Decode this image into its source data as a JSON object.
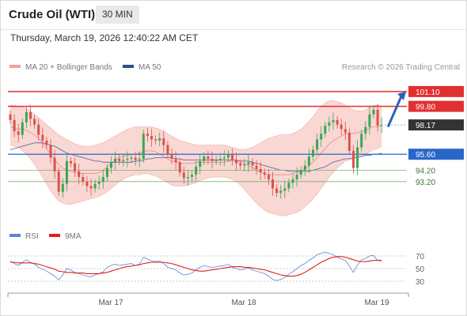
{
  "header": {
    "title": "Crude Oil (WTI)",
    "interval": "30 MIN"
  },
  "timestamp": "Thursday, March 19, 2026 12:40:22 AM CET",
  "legend": {
    "ma20": {
      "label": "MA 20 + Bollinger Bands",
      "color": "#f08080"
    },
    "ma50": {
      "label": "MA 50",
      "color": "#2c4f8c"
    }
  },
  "copyright": "Research © 2026 Trading Central",
  "colors": {
    "up": "#3aa655",
    "down": "#d9534f",
    "resistance": "#e03030",
    "pivot": "#2a66c8",
    "support": "#76b36b",
    "arrow": "#2a62b5",
    "band_fill": "#f7c9c4",
    "current": "#333333"
  },
  "chart_data": [
    {
      "type": "line",
      "subtype": "candlestick",
      "title": "Crude Oil (WTI)",
      "interval": "30 MIN",
      "ylim": [
        90.0,
        102.2
      ],
      "grid": false,
      "x_ticks": [
        "Mar 17",
        "Mar 18",
        "Mar 19"
      ],
      "levels": [
        {
          "label": "101.10",
          "value": 101.1,
          "kind": "resistance"
        },
        {
          "label": "99.80",
          "value": 99.8,
          "kind": "resistance"
        },
        {
          "label": "98.17",
          "value": 98.17,
          "kind": "current"
        },
        {
          "label": "95.60",
          "value": 95.6,
          "kind": "pivot"
        },
        {
          "label": "94.20",
          "value": 94.2,
          "kind": "support"
        },
        {
          "label": "93.20",
          "value": 93.2,
          "kind": "support"
        }
      ],
      "closes": [
        98.6,
        97.6,
        97.3,
        98.4,
        99.3,
        98.7,
        98.2,
        97.3,
        96.8,
        96.4,
        95.3,
        94.1,
        92.3,
        93.0,
        95.0,
        94.8,
        94.1,
        93.6,
        93.2,
        92.8,
        92.6,
        93.0,
        93.2,
        93.6,
        94.4,
        94.9,
        95.2,
        95.0,
        95.1,
        95.2,
        95.3,
        95.1,
        95.2,
        97.4,
        97.2,
        96.9,
        96.8,
        97.0,
        96.4,
        95.6,
        95.2,
        94.9,
        94.0,
        93.5,
        93.6,
        93.8,
        94.5,
        95.0,
        95.4,
        95.2,
        95.0,
        95.1,
        95.2,
        95.3,
        95.6,
        95.1,
        94.8,
        94.6,
        94.7,
        94.9,
        94.6,
        94.3,
        94.0,
        93.8,
        93.4,
        92.6,
        92.2,
        92.4,
        92.6,
        93.1,
        93.4,
        93.8,
        94.2,
        94.6,
        95.4,
        96.0,
        96.9,
        97.4,
        98.1,
        98.4,
        98.6,
        98.2,
        97.8,
        97.5,
        95.9,
        94.4,
        96.2,
        97.4,
        98.0,
        99.1,
        99.5,
        98.1,
        98.17
      ],
      "ma20": [
        98.0,
        97.9,
        97.8,
        97.8,
        97.7,
        97.5,
        97.3,
        97.0,
        96.6,
        96.1,
        95.6,
        95.1,
        94.7,
        94.4,
        94.2,
        94.1,
        94.0,
        93.9,
        93.9,
        93.9,
        93.9,
        93.9,
        94.0,
        94.2,
        94.5,
        94.8,
        95.1,
        95.3,
        95.4,
        95.5,
        95.6,
        95.6,
        95.7,
        95.8,
        95.9,
        95.9,
        95.8,
        95.6,
        95.4,
        95.2,
        95.0,
        94.9,
        94.8,
        94.8,
        94.8,
        94.8,
        94.9,
        94.9,
        94.9,
        94.9,
        94.9,
        94.9,
        94.9,
        94.9,
        95.0,
        95.0,
        95.0,
        94.9,
        94.8,
        94.6,
        94.4,
        94.2,
        94.0,
        93.9,
        93.8,
        93.8,
        93.8,
        93.8,
        93.8,
        93.8,
        93.9,
        94.0,
        94.1,
        94.3,
        94.6,
        94.9,
        95.3,
        95.7,
        96.1,
        96.5,
        96.8,
        97.0,
        97.2,
        97.4,
        97.4,
        97.4,
        97.5,
        97.6,
        97.7,
        97.9,
        98.0,
        98.0,
        98.1
      ],
      "bb_upper": [
        99.9,
        99.9,
        99.8,
        99.7,
        99.6,
        99.4,
        99.1,
        98.8,
        98.5,
        98.2,
        97.9,
        97.6,
        97.3,
        97.1,
        96.9,
        96.7,
        96.5,
        96.4,
        96.3,
        96.3,
        96.3,
        96.4,
        96.5,
        96.6,
        96.8,
        97.0,
        97.2,
        97.4,
        97.6,
        97.8,
        97.9,
        98.0,
        98.0,
        98.0,
        98.0,
        98.0,
        97.9,
        97.8,
        97.6,
        97.4,
        97.2,
        97.0,
        96.8,
        96.7,
        96.6,
        96.5,
        96.4,
        96.4,
        96.4,
        96.4,
        96.4,
        96.4,
        96.4,
        96.4,
        96.3,
        96.2,
        96.1,
        96.0,
        96.0,
        96.1,
        96.2,
        96.4,
        96.6,
        96.8,
        97.0,
        97.1,
        97.2,
        97.3,
        97.3,
        97.3,
        97.4,
        97.6,
        97.8,
        98.1,
        98.5,
        98.9,
        99.4,
        99.8,
        100.1,
        100.3,
        100.3,
        100.2,
        100.1,
        99.9,
        99.7,
        99.5,
        99.4,
        99.4,
        99.5,
        99.7,
        99.9,
        99.9,
        99.8
      ],
      "bb_lower": [
        96.4,
        96.3,
        96.2,
        95.9,
        95.6,
        95.2,
        94.7,
        94.2,
        93.6,
        93.0,
        92.4,
        91.9,
        91.5,
        91.3,
        91.2,
        91.2,
        91.3,
        91.4,
        91.5,
        91.6,
        91.7,
        91.8,
        91.9,
        92.1,
        92.3,
        92.6,
        92.9,
        93.2,
        93.4,
        93.6,
        93.7,
        93.8,
        93.8,
        93.9,
        93.9,
        93.8,
        93.7,
        93.5,
        93.3,
        93.1,
        92.9,
        92.8,
        92.8,
        92.8,
        92.9,
        93.0,
        93.1,
        93.3,
        93.4,
        93.5,
        93.6,
        93.6,
        93.6,
        93.6,
        93.5,
        93.4,
        93.2,
        92.9,
        92.5,
        92.1,
        91.7,
        91.3,
        91.0,
        90.7,
        90.5,
        90.4,
        90.3,
        90.2,
        90.2,
        90.3,
        90.4,
        90.5,
        90.7,
        91.0,
        91.3,
        91.7,
        92.1,
        92.6,
        93.1,
        93.6,
        94.0,
        94.4,
        94.7,
        95.0,
        95.1,
        95.2,
        95.3,
        95.4,
        95.6,
        95.8,
        96.0,
        96.1,
        96.3
      ],
      "ma50": [
        96.0,
        96.1,
        96.2,
        96.3,
        96.4,
        96.5,
        96.6,
        96.6,
        96.6,
        96.5,
        96.4,
        96.3,
        96.1,
        95.9,
        95.7,
        95.6,
        95.5,
        95.4,
        95.3,
        95.2,
        95.1,
        95.0,
        95.0,
        94.9,
        94.9,
        94.9,
        94.9,
        94.9,
        94.9,
        94.9,
        94.9,
        95.0,
        95.0,
        95.1,
        95.2,
        95.2,
        95.3,
        95.3,
        95.3,
        95.3,
        95.3,
        95.2,
        95.2,
        95.1,
        95.1,
        95.1,
        95.1,
        95.1,
        95.1,
        95.1,
        95.1,
        95.1,
        95.1,
        95.1,
        95.1,
        95.1,
        95.1,
        95.0,
        95.0,
        95.0,
        94.9,
        94.8,
        94.7,
        94.6,
        94.5,
        94.4,
        94.3,
        94.2,
        94.2,
        94.1,
        94.1,
        94.1,
        94.1,
        94.1,
        94.1,
        94.2,
        94.3,
        94.4,
        94.5,
        94.7,
        94.9,
        95.0,
        95.1,
        95.2,
        95.2,
        95.3,
        95.3,
        95.4,
        95.5,
        95.5,
        95.6,
        95.6,
        95.7
      ],
      "forecast_arrow": {
        "from": 98.0,
        "to": 101.1
      }
    },
    {
      "type": "line",
      "title": "RSI",
      "ylim": [
        20,
        80
      ],
      "y_ticks": [
        70,
        50,
        30
      ],
      "series": [
        {
          "name": "RSI",
          "color": "#5b84d6",
          "values": [
            62,
            58,
            55,
            60,
            64,
            60,
            57,
            52,
            49,
            46,
            42,
            38,
            32,
            40,
            50,
            48,
            44,
            42,
            40,
            38,
            37,
            40,
            42,
            45,
            52,
            55,
            57,
            55,
            56,
            57,
            58,
            55,
            57,
            68,
            65,
            62,
            61,
            62,
            58,
            52,
            50,
            48,
            43,
            40,
            41,
            43,
            48,
            52,
            55,
            53,
            52,
            53,
            54,
            55,
            57,
            52,
            50,
            48,
            49,
            51,
            48,
            46,
            44,
            42,
            38,
            33,
            31,
            33,
            36,
            41,
            45,
            50,
            55,
            58,
            63,
            67,
            72,
            74,
            76,
            74,
            72,
            68,
            65,
            63,
            54,
            44,
            56,
            64,
            66,
            70,
            71,
            63,
            62
          ]
        },
        {
          "name": "9MA",
          "color": "#e02020",
          "values": [
            60,
            60,
            59,
            59,
            59,
            59,
            58,
            57,
            55,
            53,
            51,
            49,
            46,
            45,
            44,
            44,
            43,
            43,
            43,
            42,
            42,
            42,
            42,
            43,
            44,
            46,
            48,
            50,
            52,
            53,
            54,
            55,
            56,
            58,
            59,
            60,
            60,
            60,
            60,
            59,
            58,
            56,
            54,
            52,
            50,
            48,
            47,
            46,
            46,
            47,
            48,
            49,
            50,
            51,
            52,
            53,
            53,
            53,
            52,
            52,
            51,
            50,
            49,
            48,
            46,
            44,
            42,
            40,
            39,
            38,
            38,
            39,
            41,
            44,
            48,
            52,
            56,
            60,
            63,
            66,
            68,
            69,
            69,
            68,
            66,
            64,
            62,
            61,
            61,
            62,
            63,
            63,
            63
          ]
        }
      ]
    }
  ]
}
